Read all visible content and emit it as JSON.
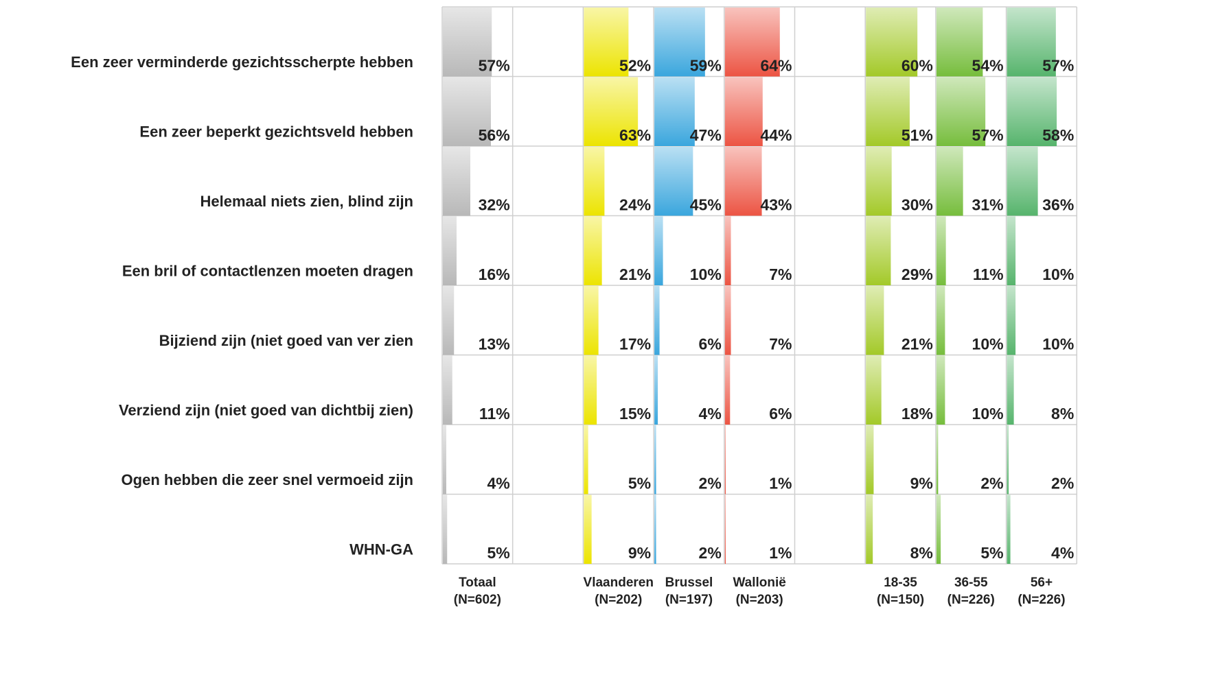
{
  "chart_data": {
    "type": "bar",
    "categories": [
      "Een zeer verminderde gezichtsscherpte hebben",
      "Een zeer beperkt gezichtsveld hebben",
      "Helemaal niets zien, blind zijn",
      "Een bril of contactlenzen moeten dragen",
      "Bijziend zijn (niet goed van ver zien",
      "Verziend zijn (niet goed van dichtbij zien)",
      "Ogen hebben die zeer snel vermoeid zijn",
      "WHN-GA"
    ],
    "xlim": [
      0,
      100
    ],
    "series": [
      {
        "name": "Totaal",
        "sample": "(N=602)",
        "color": "#b8b8b8",
        "values": [
          57,
          56,
          32,
          16,
          13,
          11,
          4,
          5
        ],
        "value_labels": [
          "57%",
          "56%",
          "32%",
          "16%",
          "13%",
          "11%",
          "4%",
          "5%"
        ]
      },
      {
        "name": "Vlaanderen",
        "sample": "(N=202)",
        "color": "#ece400",
        "values": [
          52,
          63,
          24,
          21,
          17,
          15,
          5,
          9
        ],
        "value_labels": [
          "52%",
          "63%",
          "24%",
          "21%",
          "17%",
          "15%",
          "5%",
          "9%"
        ]
      },
      {
        "name": "Brussel",
        "sample": "(N=197)",
        "color": "#3aa6dd",
        "values": [
          59,
          47,
          45,
          10,
          6,
          4,
          2,
          2
        ],
        "value_labels": [
          "59%",
          "47%",
          "45%",
          "10%",
          "6%",
          "4%",
          "2%",
          "2%"
        ]
      },
      {
        "name": "Wallonië",
        "sample": "(N=203)",
        "color": "#ec5443",
        "values": [
          64,
          44,
          43,
          7,
          7,
          6,
          1,
          1
        ],
        "value_labels": [
          "64%",
          "44%",
          "43%",
          "7%",
          "7%",
          "6%",
          "1%",
          "1%"
        ]
      },
      {
        "name": "18-35",
        "sample": "(N=150)",
        "color": "#a3c928",
        "values": [
          60,
          51,
          30,
          29,
          21,
          18,
          9,
          8
        ],
        "value_labels": [
          "60%",
          "51%",
          "30%",
          "29%",
          "21%",
          "18%",
          "9%",
          "8%"
        ]
      },
      {
        "name": "36-55",
        "sample": "(N=226)",
        "color": "#76bd3c",
        "values": [
          54,
          57,
          31,
          11,
          10,
          10,
          2,
          5
        ],
        "value_labels": [
          "54%",
          "57%",
          "31%",
          "11%",
          "10%",
          "10%",
          "2%",
          "5%"
        ]
      },
      {
        "name": "56+",
        "sample": "(N=226)",
        "color": "#56b46c",
        "values": [
          57,
          58,
          36,
          10,
          10,
          8,
          2,
          4
        ],
        "value_labels": [
          "57%",
          "58%",
          "36%",
          "10%",
          "10%",
          "8%",
          "2%",
          "4%"
        ]
      }
    ]
  }
}
